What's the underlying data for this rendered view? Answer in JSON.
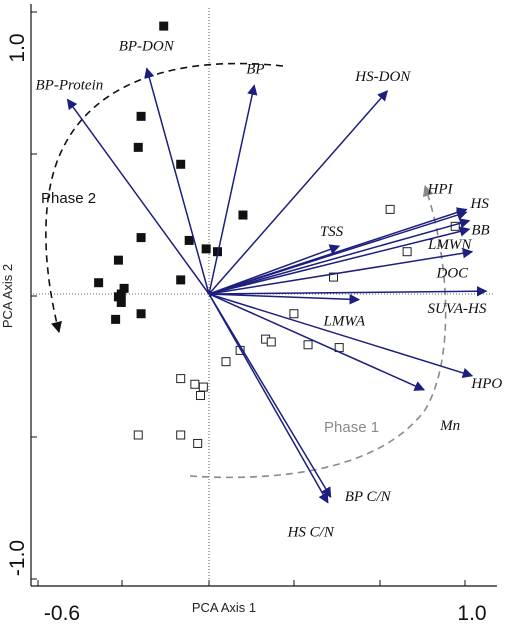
{
  "chart_data": {
    "type": "scatter",
    "subtype": "pca-biplot",
    "xlabel": "PCA Axis 1",
    "ylabel": "PCA Axis 2",
    "xlim": [
      -0.6,
      1.0
    ],
    "ylim": [
      -1.0,
      1.0
    ],
    "x_tick_labels": [
      "-0.6",
      "1.0"
    ],
    "y_tick_labels": [
      "1.0",
      "-1.0"
    ],
    "grid": false,
    "colors": {
      "vectors": "#1c1f7e",
      "filled": "#111111",
      "phase2": "#111111",
      "phase1": "#8a8a8a"
    },
    "vectors": [
      {
        "label": "BP-Protein",
        "x": -0.5,
        "y": 0.69
      },
      {
        "label": "BP-DON",
        "x": -0.22,
        "y": 0.8
      },
      {
        "label": "BP",
        "x": 0.16,
        "y": 0.74
      },
      {
        "label": "HS-DON",
        "x": 0.63,
        "y": 0.72
      },
      {
        "label": "HPI",
        "x": 0.91,
        "y": 0.3
      },
      {
        "label": "HS",
        "x": 0.91,
        "y": 0.29
      },
      {
        "label": "BB",
        "x": 0.92,
        "y": 0.26
      },
      {
        "label": "LMWN",
        "x": 0.92,
        "y": 0.23
      },
      {
        "label": "TSS",
        "x": 0.46,
        "y": 0.17
      },
      {
        "label": "DOC",
        "x": 0.93,
        "y": 0.15
      },
      {
        "label": "SUVA-HS",
        "x": 0.98,
        "y": 0.01
      },
      {
        "label": "LMWA",
        "x": 0.53,
        "y": -0.02
      },
      {
        "label": "HPO",
        "x": 0.93,
        "y": -0.29
      },
      {
        "label": "Mn",
        "x": 0.76,
        "y": -0.34
      },
      {
        "label": "BP C/N",
        "x": 0.43,
        "y": -0.72
      },
      {
        "label": "HS C/N",
        "x": 0.42,
        "y": -0.74
      }
    ],
    "phase2_samples": [
      [
        -0.16,
        0.95
      ],
      [
        -0.24,
        0.63
      ],
      [
        -0.25,
        0.52
      ],
      [
        -0.1,
        0.46
      ],
      [
        -0.07,
        0.19
      ],
      [
        0.12,
        0.28
      ],
      [
        -0.24,
        0.2
      ],
      [
        -0.01,
        0.16
      ],
      [
        0.03,
        0.15
      ],
      [
        -0.32,
        0.12
      ],
      [
        -0.1,
        0.05
      ],
      [
        -0.39,
        0.04
      ],
      [
        -0.3,
        0.02
      ],
      [
        -0.31,
        0.0
      ],
      [
        -0.32,
        -0.01
      ],
      [
        -0.31,
        -0.03
      ],
      [
        -0.33,
        -0.09
      ],
      [
        -0.24,
        -0.07
      ]
    ],
    "phase1_samples": [
      [
        0.64,
        0.3
      ],
      [
        0.87,
        0.24
      ],
      [
        0.7,
        0.15
      ],
      [
        0.44,
        0.06
      ],
      [
        0.3,
        -0.07
      ],
      [
        0.2,
        -0.16
      ],
      [
        0.22,
        -0.17
      ],
      [
        0.35,
        -0.18
      ],
      [
        0.46,
        -0.19
      ],
      [
        0.11,
        -0.2
      ],
      [
        0.06,
        -0.24
      ],
      [
        -0.1,
        -0.3
      ],
      [
        -0.05,
        -0.32
      ],
      [
        -0.02,
        -0.33
      ],
      [
        -0.03,
        -0.36
      ],
      [
        -0.25,
        -0.5
      ],
      [
        -0.1,
        -0.5
      ],
      [
        -0.04,
        -0.53
      ]
    ],
    "annotations": [
      {
        "text": "Phase 2",
        "x": -0.6,
        "y": 0.34,
        "color": "#111111"
      },
      {
        "text": "Phase 1",
        "x": 0.41,
        "y": -0.47,
        "color": "#8a8a8a"
      }
    ]
  }
}
